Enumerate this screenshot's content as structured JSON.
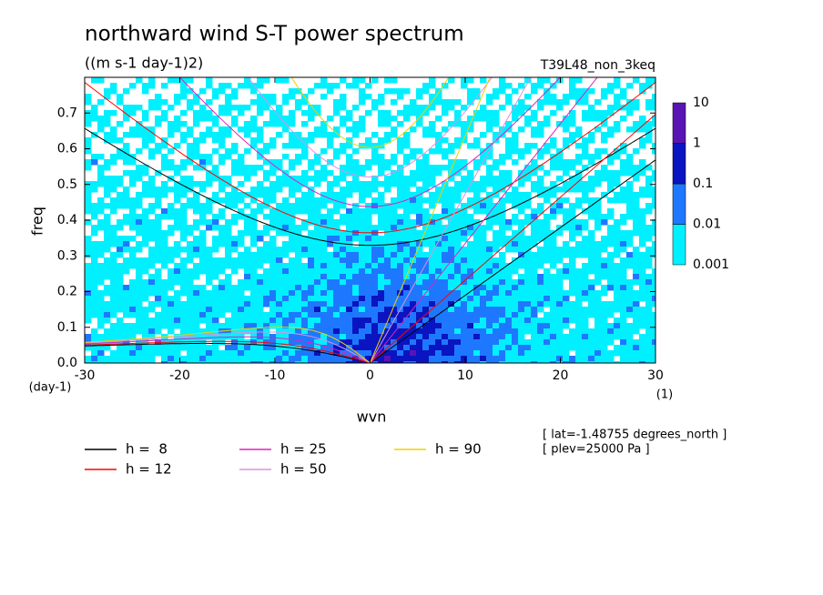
{
  "chart_data": {
    "type": "contour",
    "title": "northward wind S-T power spectrum",
    "subtitle": "((m s-1 day-1)2)",
    "annotation": "T39L48_non_3keq",
    "x_label": "wvn",
    "y_label": "freq",
    "x_unit": "(1)",
    "y_unit": "(day-1)",
    "xlim": [
      -30,
      30
    ],
    "xticks": [
      -30,
      -20,
      -10,
      0,
      10,
      20,
      30
    ],
    "ylim": [
      0,
      0.8
    ],
    "yticks": [
      {
        "value": 0,
        "label": "0.0"
      },
      0.1,
      0.2,
      0.3,
      0.4,
      0.5,
      0.6,
      0.7
    ],
    "colorbar": {
      "levels": [
        0.001,
        0.01,
        0.1,
        1,
        10
      ],
      "colors": [
        "#00f0ff",
        "#1e78ff",
        "#0a14c0",
        "#5a14b4"
      ]
    },
    "series": [
      {
        "name": "h =  8",
        "color": "#000000",
        "h": 8
      },
      {
        "name": "h = 12",
        "color": "#ff0000",
        "h": 12
      },
      {
        "name": "h = 25",
        "color": "#e020c0",
        "h": 25
      },
      {
        "name": "h = 50",
        "color": "#e090e0",
        "h": 50
      },
      {
        "name": "h = 90",
        "color": "#f0d000",
        "h": 90
      }
    ],
    "notes": [
      "[ lat=-1.48755 degrees_north ]",
      "[ plev=25000 Pa ]"
    ]
  }
}
